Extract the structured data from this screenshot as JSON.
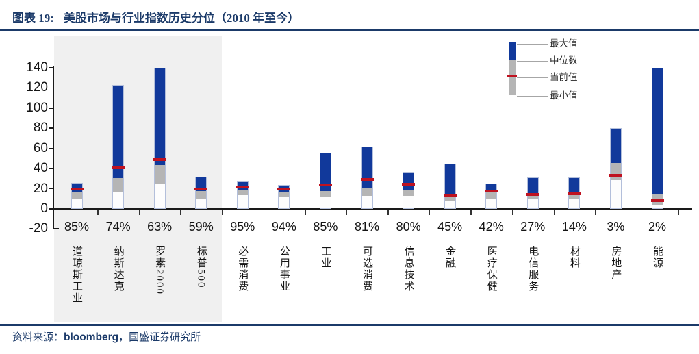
{
  "title": {
    "label": "图表 19:",
    "text": "美股市场与行业指数历史分位（2010 年至今）"
  },
  "footer": {
    "label": "资料来源：",
    "source_en": "bloomberg",
    "source_cn": "，国盛证券研究所"
  },
  "colors": {
    "navy": "#1b3a69",
    "blue": "#11399b",
    "gray": "#b5b5b5",
    "red": "#bf1220",
    "panel": "#f0f0f0",
    "bar_border": "#b3bfdb"
  },
  "chart_data": {
    "type": "floating-bar",
    "title": "美股市场与行业指数历史分位（2010 年至今）",
    "description": "Range bars: gray = min to median, blue = median to max, red line = current value; x labels show current historical percentile",
    "ylim": [
      -20,
      140
    ],
    "yticks": [
      140,
      120,
      100,
      80,
      60,
      40,
      20,
      0,
      -20
    ],
    "grid": false,
    "legend_position": "top-right",
    "legend": [
      "最大值",
      "中位数",
      "当前值",
      "最小值"
    ],
    "legend_keys": [
      "max",
      "median",
      "current",
      "min"
    ],
    "highlighted_first_categories": 4,
    "categories": [
      "道琼斯工业",
      "纳斯达克",
      "罗素2000",
      "标普500",
      "必需消费",
      "公用事业",
      "工业",
      "可选消费",
      "信息技术",
      "金融",
      "医疗保健",
      "电信服务",
      "材料",
      "房地产",
      "能源"
    ],
    "percentile_labels": [
      "85%",
      "74%",
      "63%",
      "59%",
      "95%",
      "94%",
      "85%",
      "81%",
      "80%",
      "45%",
      "42%",
      "27%",
      "14%",
      "3%",
      "2%"
    ],
    "series": [
      {
        "key": "min",
        "name": "最小值",
        "values": [
          11,
          17,
          26,
          10.5,
          14,
          13,
          12,
          13.5,
          13.5,
          9,
          11,
          10.5,
          10,
          29.5,
          5
        ]
      },
      {
        "key": "median",
        "name": "中位数",
        "values": [
          17.5,
          31.5,
          44.5,
          18,
          19.5,
          17.5,
          18,
          21,
          20,
          14,
          18.5,
          16.5,
          17,
          46,
          15
        ]
      },
      {
        "key": "max",
        "name": "最大值",
        "values": [
          26,
          123,
          140,
          32,
          27,
          24,
          56,
          62,
          37,
          45,
          25,
          31,
          31.5,
          80,
          140
        ]
      },
      {
        "key": "current",
        "name": "当前值",
        "values": [
          20,
          41,
          49,
          19.5,
          22,
          20,
          24,
          29,
          24.5,
          13.5,
          18,
          14.5,
          15,
          33.5,
          8
        ]
      }
    ]
  }
}
